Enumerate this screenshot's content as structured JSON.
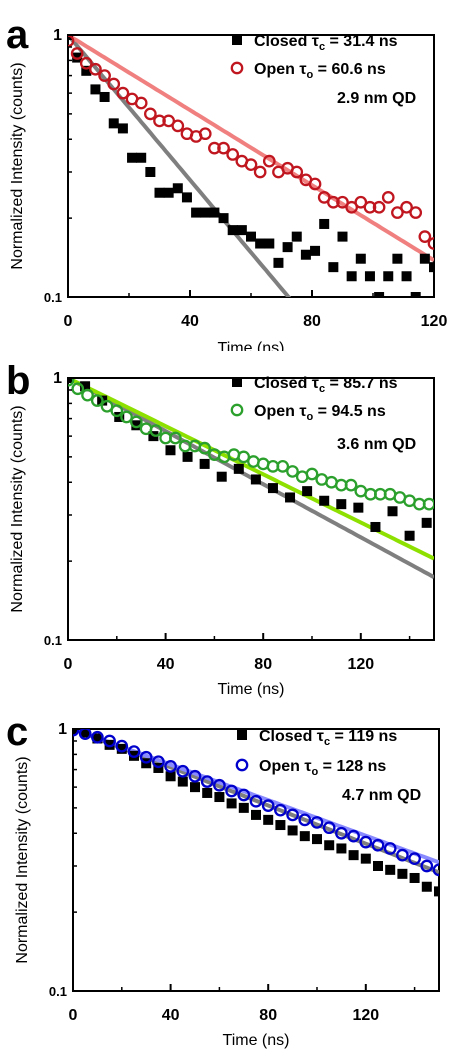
{
  "chart_data": [
    {
      "panel_label": "a",
      "type": "scatter",
      "xlabel": "Time (ns)",
      "ylabel": "Normalized Intensity (counts)",
      "xlim": [
        0,
        120
      ],
      "ylim": [
        0.1,
        1
      ],
      "yscale": "log",
      "xticks": [
        "0",
        "40",
        "80",
        "120"
      ],
      "yticks": [
        "1",
        "0.1"
      ],
      "annotation": "2.9 nm QD",
      "series": [
        {
          "name": "Closed",
          "symbol": "τ",
          "sub": "c",
          "value_text": "= 31.4 ns",
          "marker": "square",
          "color": "#000000",
          "fit_color": "#7f7f7f",
          "tau": 31.4,
          "x": [
            0,
            3,
            6,
            9,
            12,
            15,
            18,
            21,
            24,
            27,
            30,
            33,
            36,
            39,
            42,
            45,
            48,
            51,
            54,
            57,
            60,
            63,
            66,
            69,
            72,
            75,
            78,
            81,
            84,
            87,
            90,
            93,
            96,
            99,
            102,
            105,
            108,
            111,
            114,
            117,
            120
          ],
          "y": [
            1.0,
            0.82,
            0.73,
            0.62,
            0.58,
            0.46,
            0.44,
            0.34,
            0.34,
            0.3,
            0.25,
            0.25,
            0.26,
            0.24,
            0.21,
            0.21,
            0.21,
            0.2,
            0.18,
            0.18,
            0.17,
            0.16,
            0.16,
            0.135,
            0.155,
            0.17,
            0.145,
            0.15,
            0.19,
            0.13,
            0.17,
            0.12,
            0.14,
            0.12,
            0.1,
            0.12,
            0.14,
            0.12,
            0.1,
            0.14,
            0.13
          ]
        },
        {
          "name": "Open",
          "symbol": "τ",
          "sub": "o",
          "value_text": "= 60.6 ns",
          "marker": "circle",
          "color": "#c0161f",
          "fit_color": "#f08080",
          "tau": 60.6,
          "x": [
            0,
            3,
            6,
            9,
            12,
            15,
            18,
            21,
            24,
            27,
            30,
            33,
            36,
            39,
            42,
            45,
            48,
            51,
            54,
            57,
            60,
            63,
            66,
            69,
            72,
            75,
            78,
            81,
            84,
            87,
            90,
            93,
            96,
            99,
            102,
            105,
            108,
            111,
            114,
            117,
            120
          ],
          "y": [
            0.95,
            0.85,
            0.78,
            0.74,
            0.7,
            0.65,
            0.6,
            0.57,
            0.55,
            0.5,
            0.47,
            0.47,
            0.45,
            0.42,
            0.41,
            0.42,
            0.37,
            0.37,
            0.35,
            0.33,
            0.32,
            0.3,
            0.33,
            0.3,
            0.31,
            0.3,
            0.28,
            0.27,
            0.24,
            0.23,
            0.23,
            0.22,
            0.23,
            0.22,
            0.22,
            0.24,
            0.21,
            0.22,
            0.21,
            0.17,
            0.16
          ]
        }
      ]
    },
    {
      "panel_label": "b",
      "type": "scatter",
      "xlabel": "Time (ns)",
      "ylabel": "Normalized Intensity (counts)",
      "xlim": [
        0,
        150
      ],
      "ylim": [
        0.1,
        1
      ],
      "yscale": "log",
      "xticks": [
        "0",
        "40",
        "80",
        "120"
      ],
      "yticks": [
        "1",
        "0.1"
      ],
      "annotation": "3.6 nm QD",
      "series": [
        {
          "name": "Closed",
          "symbol": "τ",
          "sub": "c",
          "value_text": "= 85.7 ns",
          "marker": "square",
          "color": "#000000",
          "fit_color": "#7f7f7f",
          "tau": 85.7,
          "x": [
            0,
            7,
            14,
            21,
            28,
            35,
            42,
            49,
            56,
            63,
            70,
            77,
            84,
            91,
            98,
            105,
            112,
            119,
            126,
            133,
            140,
            147
          ],
          "y": [
            1.0,
            0.93,
            0.82,
            0.71,
            0.66,
            0.6,
            0.53,
            0.5,
            0.47,
            0.42,
            0.45,
            0.41,
            0.38,
            0.35,
            0.37,
            0.34,
            0.33,
            0.32,
            0.27,
            0.31,
            0.25,
            0.28
          ]
        },
        {
          "name": "Open",
          "symbol": "τ",
          "sub": "o",
          "value_text": "= 94.5 ns",
          "marker": "circle",
          "color": "#2ca02c",
          "fit_color": "#8de000",
          "tau": 94.5,
          "x": [
            0,
            4,
            8,
            12,
            16,
            20,
            24,
            28,
            32,
            36,
            40,
            44,
            48,
            52,
            56,
            60,
            64,
            68,
            72,
            76,
            80,
            84,
            88,
            92,
            96,
            100,
            104,
            108,
            112,
            116,
            120,
            124,
            128,
            132,
            136,
            140,
            144,
            148
          ],
          "y": [
            0.98,
            0.91,
            0.86,
            0.82,
            0.78,
            0.75,
            0.71,
            0.68,
            0.64,
            0.63,
            0.59,
            0.59,
            0.55,
            0.55,
            0.54,
            0.51,
            0.5,
            0.51,
            0.5,
            0.48,
            0.47,
            0.46,
            0.46,
            0.44,
            0.42,
            0.43,
            0.41,
            0.4,
            0.39,
            0.39,
            0.37,
            0.36,
            0.36,
            0.36,
            0.35,
            0.34,
            0.33,
            0.33
          ]
        }
      ]
    },
    {
      "panel_label": "c",
      "type": "scatter",
      "xlabel": "Time (ns)",
      "ylabel": "Normalized Intensity (counts)",
      "xlim": [
        0,
        150
      ],
      "ylim": [
        0.1,
        1
      ],
      "yscale": "log",
      "xticks": [
        "0",
        "40",
        "80",
        "120"
      ],
      "yticks": [
        "1",
        "0.1"
      ],
      "annotation": "4.7 nm QD",
      "series": [
        {
          "name": "Closed",
          "symbol": "τ",
          "sub": "c",
          "value_text": "= 119 ns",
          "marker": "square",
          "color": "#000000",
          "fit_color": "#7f7f7f",
          "tau": 119,
          "x": [
            0,
            5,
            10,
            15,
            20,
            25,
            30,
            35,
            40,
            45,
            50,
            55,
            60,
            65,
            70,
            75,
            80,
            85,
            90,
            95,
            100,
            105,
            110,
            115,
            120,
            125,
            130,
            135,
            140,
            145,
            150
          ],
          "y": [
            1.0,
            0.97,
            0.92,
            0.87,
            0.84,
            0.79,
            0.74,
            0.71,
            0.66,
            0.63,
            0.6,
            0.57,
            0.55,
            0.52,
            0.5,
            0.47,
            0.45,
            0.43,
            0.41,
            0.39,
            0.38,
            0.36,
            0.35,
            0.33,
            0.32,
            0.3,
            0.29,
            0.28,
            0.27,
            0.25,
            0.24
          ]
        },
        {
          "name": "Open",
          "symbol": "τ",
          "sub": "o",
          "value_text": "= 128 ns",
          "marker": "circle",
          "color": "#0000cc",
          "fit_color": "#8a8aff",
          "tau": 128,
          "x": [
            0,
            5,
            10,
            15,
            20,
            25,
            30,
            35,
            40,
            45,
            50,
            55,
            60,
            65,
            70,
            75,
            80,
            85,
            90,
            95,
            100,
            105,
            110,
            115,
            120,
            125,
            130,
            135,
            140,
            145,
            150
          ],
          "y": [
            0.99,
            0.96,
            0.93,
            0.9,
            0.86,
            0.82,
            0.78,
            0.75,
            0.72,
            0.69,
            0.66,
            0.63,
            0.61,
            0.58,
            0.56,
            0.53,
            0.51,
            0.49,
            0.47,
            0.45,
            0.44,
            0.42,
            0.4,
            0.39,
            0.37,
            0.36,
            0.35,
            0.33,
            0.32,
            0.3,
            0.29
          ]
        }
      ]
    }
  ]
}
